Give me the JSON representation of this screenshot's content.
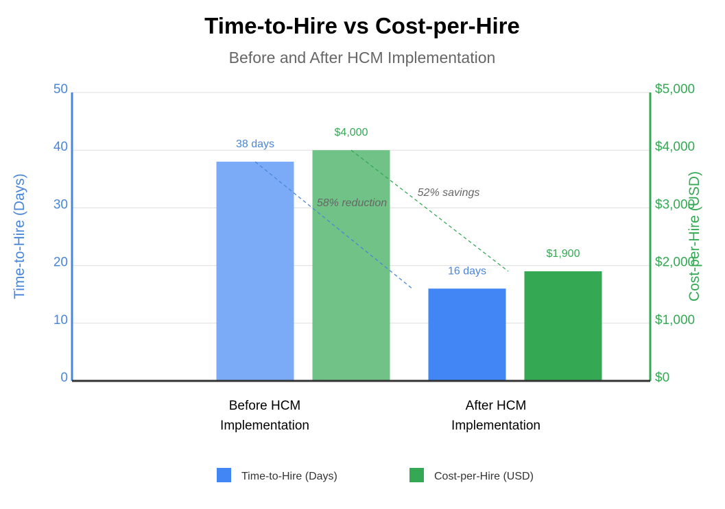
{
  "chart_data": {
    "type": "bar",
    "title": "Time-to-Hire vs Cost-per-Hire",
    "subtitle": "Before and After HCM Implementation",
    "categories": [
      "Before HCM Implementation",
      "After HCM Implementation"
    ],
    "category_lines": [
      [
        "Before HCM",
        "Implementation"
      ],
      [
        "After HCM",
        "Implementation"
      ]
    ],
    "series": [
      {
        "name": "Time-to-Hire (Days)",
        "axis": "left",
        "values": [
          38,
          16
        ],
        "data_labels": [
          "38 days",
          "16 days"
        ],
        "colors": [
          "#7baaf7",
          "#4285f4"
        ],
        "legend_color": "#4285f4"
      },
      {
        "name": "Cost-per-Hire (USD)",
        "axis": "right",
        "values": [
          4000,
          1900
        ],
        "data_labels": [
          "$4,000",
          "$1,900"
        ],
        "colors": [
          "#71c287",
          "#34a853"
        ],
        "legend_color": "#34a853"
      }
    ],
    "y_left": {
      "label": "Time-to-Hire (Days)",
      "min": 0,
      "max": 50,
      "ticks": [
        0,
        10,
        20,
        30,
        40,
        50
      ],
      "tick_labels": [
        "0",
        "10",
        "20",
        "30",
        "40",
        "50"
      ],
      "color": "#4a86d8"
    },
    "y_right": {
      "label": "Cost-per-Hire (USD)",
      "min": 0,
      "max": 5000,
      "ticks": [
        0,
        1000,
        2000,
        3000,
        4000,
        5000
      ],
      "tick_labels": [
        "$0",
        "$1,000",
        "$2,000",
        "$3,000",
        "$4,000",
        "$5,000"
      ],
      "color": "#34a853"
    },
    "annotations": [
      {
        "text": "58% reduction",
        "series": 0,
        "color": "#666666"
      },
      {
        "text": "52% savings",
        "series": 1,
        "color": "#666666"
      }
    ],
    "grid": true,
    "legend_position": "bottom"
  }
}
